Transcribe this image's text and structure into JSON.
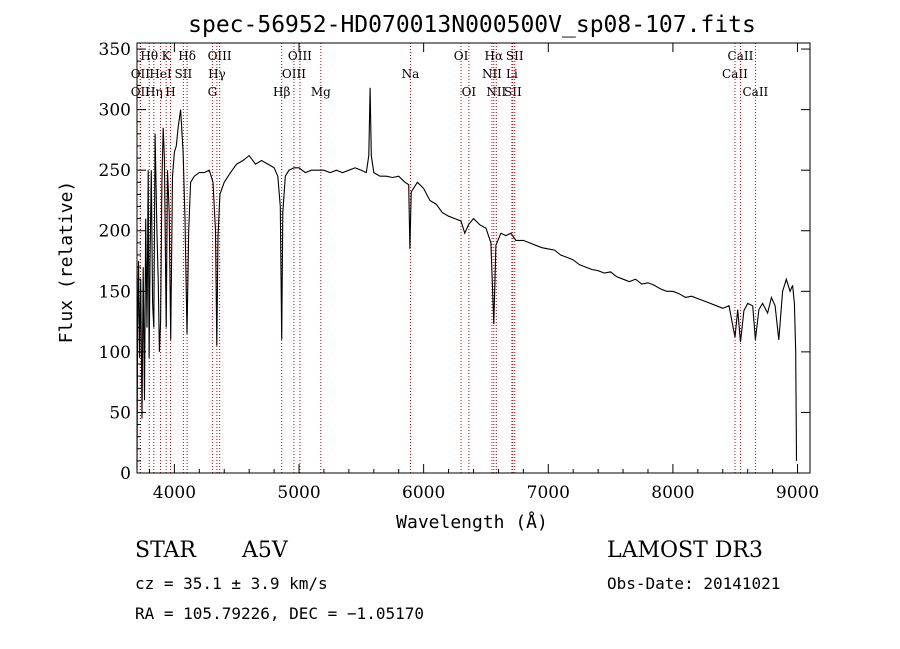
{
  "chart_data": {
    "type": "line",
    "title": "spec-56952-HD070013N000500V_sp08-107.fits",
    "xlabel": "Wavelength (Å)",
    "ylabel": "Flux (relative)",
    "xlim": [
      3700,
      9100
    ],
    "ylim": [
      0,
      355
    ],
    "x_ticks": [
      4000,
      5000,
      6000,
      7000,
      8000,
      9000
    ],
    "y_ticks": [
      0,
      50,
      100,
      150,
      200,
      250,
      300,
      350
    ],
    "line_color": "#000000",
    "marker_color": "#c00000",
    "series": [
      {
        "name": "flux",
        "points": [
          [
            3700,
            3
          ],
          [
            3705,
            120
          ],
          [
            3712,
            175
          ],
          [
            3720,
            95
          ],
          [
            3730,
            160
          ],
          [
            3740,
            45
          ],
          [
            3750,
            170
          ],
          [
            3760,
            60
          ],
          [
            3770,
            210
          ],
          [
            3780,
            120
          ],
          [
            3790,
            250
          ],
          [
            3797,
            95
          ],
          [
            3805,
            180
          ],
          [
            3815,
            250
          ],
          [
            3825,
            140
          ],
          [
            3835,
            120
          ],
          [
            3845,
            280
          ],
          [
            3860,
            200
          ],
          [
            3870,
            160
          ],
          [
            3880,
            100
          ],
          [
            3889,
            125
          ],
          [
            3900,
            240
          ],
          [
            3910,
            285
          ],
          [
            3920,
            260
          ],
          [
            3934,
            120
          ],
          [
            3945,
            250
          ],
          [
            3958,
            215
          ],
          [
            3970,
            110
          ],
          [
            3985,
            245
          ],
          [
            4000,
            265
          ],
          [
            4015,
            270
          ],
          [
            4030,
            285
          ],
          [
            4050,
            300
          ],
          [
            4070,
            265
          ],
          [
            4085,
            210
          ],
          [
            4101,
            115
          ],
          [
            4115,
            200
          ],
          [
            4130,
            240
          ],
          [
            4160,
            245
          ],
          [
            4200,
            248
          ],
          [
            4240,
            248
          ],
          [
            4280,
            250
          ],
          [
            4310,
            240
          ],
          [
            4330,
            200
          ],
          [
            4340,
            105
          ],
          [
            4350,
            195
          ],
          [
            4365,
            230
          ],
          [
            4400,
            240
          ],
          [
            4450,
            248
          ],
          [
            4500,
            255
          ],
          [
            4550,
            258
          ],
          [
            4600,
            262
          ],
          [
            4650,
            255
          ],
          [
            4700,
            258
          ],
          [
            4750,
            255
          ],
          [
            4800,
            252
          ],
          [
            4830,
            245
          ],
          [
            4850,
            220
          ],
          [
            4861,
            110
          ],
          [
            4870,
            215
          ],
          [
            4890,
            245
          ],
          [
            4920,
            250
          ],
          [
            4960,
            252
          ],
          [
            5000,
            252
          ],
          [
            5050,
            248
          ],
          [
            5100,
            250
          ],
          [
            5150,
            250
          ],
          [
            5200,
            250
          ],
          [
            5250,
            248
          ],
          [
            5300,
            250
          ],
          [
            5350,
            248
          ],
          [
            5400,
            250
          ],
          [
            5450,
            252
          ],
          [
            5500,
            250
          ],
          [
            5540,
            248
          ],
          [
            5560,
            262
          ],
          [
            5570,
            318
          ],
          [
            5580,
            262
          ],
          [
            5600,
            248
          ],
          [
            5650,
            245
          ],
          [
            5700,
            245
          ],
          [
            5750,
            244
          ],
          [
            5800,
            245
          ],
          [
            5850,
            240
          ],
          [
            5880,
            238
          ],
          [
            5890,
            185
          ],
          [
            5900,
            232
          ],
          [
            5950,
            240
          ],
          [
            6000,
            235
          ],
          [
            6050,
            225
          ],
          [
            6100,
            222
          ],
          [
            6150,
            215
          ],
          [
            6200,
            212
          ],
          [
            6250,
            210
          ],
          [
            6300,
            208
          ],
          [
            6330,
            198
          ],
          [
            6360,
            205
          ],
          [
            6400,
            210
          ],
          [
            6450,
            205
          ],
          [
            6500,
            202
          ],
          [
            6540,
            190
          ],
          [
            6563,
            123
          ],
          [
            6580,
            188
          ],
          [
            6620,
            198
          ],
          [
            6660,
            196
          ],
          [
            6700,
            198
          ],
          [
            6740,
            192
          ],
          [
            6800,
            192
          ],
          [
            6850,
            190
          ],
          [
            6900,
            188
          ],
          [
            6950,
            186
          ],
          [
            7000,
            185
          ],
          [
            7050,
            184
          ],
          [
            7100,
            180
          ],
          [
            7150,
            178
          ],
          [
            7200,
            176
          ],
          [
            7250,
            172
          ],
          [
            7300,
            170
          ],
          [
            7350,
            168
          ],
          [
            7400,
            167
          ],
          [
            7450,
            165
          ],
          [
            7500,
            166
          ],
          [
            7550,
            162
          ],
          [
            7600,
            160
          ],
          [
            7650,
            158
          ],
          [
            7700,
            160
          ],
          [
            7750,
            156
          ],
          [
            7800,
            157
          ],
          [
            7850,
            155
          ],
          [
            7900,
            152
          ],
          [
            7950,
            150
          ],
          [
            8000,
            150
          ],
          [
            8050,
            148
          ],
          [
            8100,
            145
          ],
          [
            8150,
            146
          ],
          [
            8200,
            144
          ],
          [
            8250,
            142
          ],
          [
            8300,
            140
          ],
          [
            8350,
            138
          ],
          [
            8400,
            136
          ],
          [
            8450,
            138
          ],
          [
            8498,
            112
          ],
          [
            8520,
            135
          ],
          [
            8542,
            108
          ],
          [
            8570,
            134
          ],
          [
            8600,
            140
          ],
          [
            8640,
            138
          ],
          [
            8662,
            110
          ],
          [
            8690,
            135
          ],
          [
            8720,
            140
          ],
          [
            8760,
            132
          ],
          [
            8790,
            145
          ],
          [
            8820,
            138
          ],
          [
            8850,
            110
          ],
          [
            8880,
            150
          ],
          [
            8910,
            160
          ],
          [
            8940,
            150
          ],
          [
            8960,
            155
          ],
          [
            8975,
            140
          ],
          [
            8985,
            100
          ],
          [
            8992,
            10
          ]
        ]
      }
    ],
    "line_markers": [
      {
        "label": "OII",
        "wavelength": 3727,
        "row": 2
      },
      {
        "label": "Hθ",
        "wavelength": 3798,
        "row": 0
      },
      {
        "label": "OII",
        "wavelength": 3727,
        "row": 1
      },
      {
        "label": "Hη",
        "wavelength": 3835,
        "row": 2
      },
      {
        "label": "HeI",
        "wavelength": 3889,
        "row": 1
      },
      {
        "label": "K",
        "wavelength": 3934,
        "row": 0
      },
      {
        "label": "H",
        "wavelength": 3969,
        "row": 2
      },
      {
        "label": "SII",
        "wavelength": 4072,
        "row": 1
      },
      {
        "label": "Hδ",
        "wavelength": 4102,
        "row": 0
      },
      {
        "label": "G",
        "wavelength": 4305,
        "row": 2
      },
      {
        "label": "Hγ",
        "wavelength": 4341,
        "row": 1
      },
      {
        "label": "OIII",
        "wavelength": 4363,
        "row": 0
      },
      {
        "label": "Hβ",
        "wavelength": 4861,
        "row": 2
      },
      {
        "label": "OIII",
        "wavelength": 4959,
        "row": 1
      },
      {
        "label": "OIII",
        "wavelength": 5007,
        "row": 0
      },
      {
        "label": "Mg",
        "wavelength": 5175,
        "row": 2
      },
      {
        "label": "Na",
        "wavelength": 5894,
        "row": 1
      },
      {
        "label": "OI",
        "wavelength": 6300,
        "row": 0
      },
      {
        "label": "OI",
        "wavelength": 6363,
        "row": 2
      },
      {
        "label": "NII",
        "wavelength": 6548,
        "row": 1
      },
      {
        "label": "Hα",
        "wavelength": 6563,
        "row": 0
      },
      {
        "label": "NII",
        "wavelength": 6583,
        "row": 2
      },
      {
        "label": "SII",
        "wavelength": 6716,
        "row": 2
      },
      {
        "label": "Li",
        "wavelength": 6708,
        "row": 1
      },
      {
        "label": "SII",
        "wavelength": 6731,
        "row": 0
      },
      {
        "label": "CaII",
        "wavelength": 8498,
        "row": 1
      },
      {
        "label": "CaII",
        "wavelength": 8542,
        "row": 0
      },
      {
        "label": "CaII",
        "wavelength": 8662,
        "row": 2
      }
    ]
  },
  "info": {
    "object_class": "STAR",
    "subclass": "A5V",
    "survey": "LAMOST DR3",
    "redshift": "cz = 35.1 ± 3.9 km/s",
    "obs_date": "Obs-Date: 20141021",
    "coords": "RA = 105.79226, DEC =  −1.05170"
  }
}
